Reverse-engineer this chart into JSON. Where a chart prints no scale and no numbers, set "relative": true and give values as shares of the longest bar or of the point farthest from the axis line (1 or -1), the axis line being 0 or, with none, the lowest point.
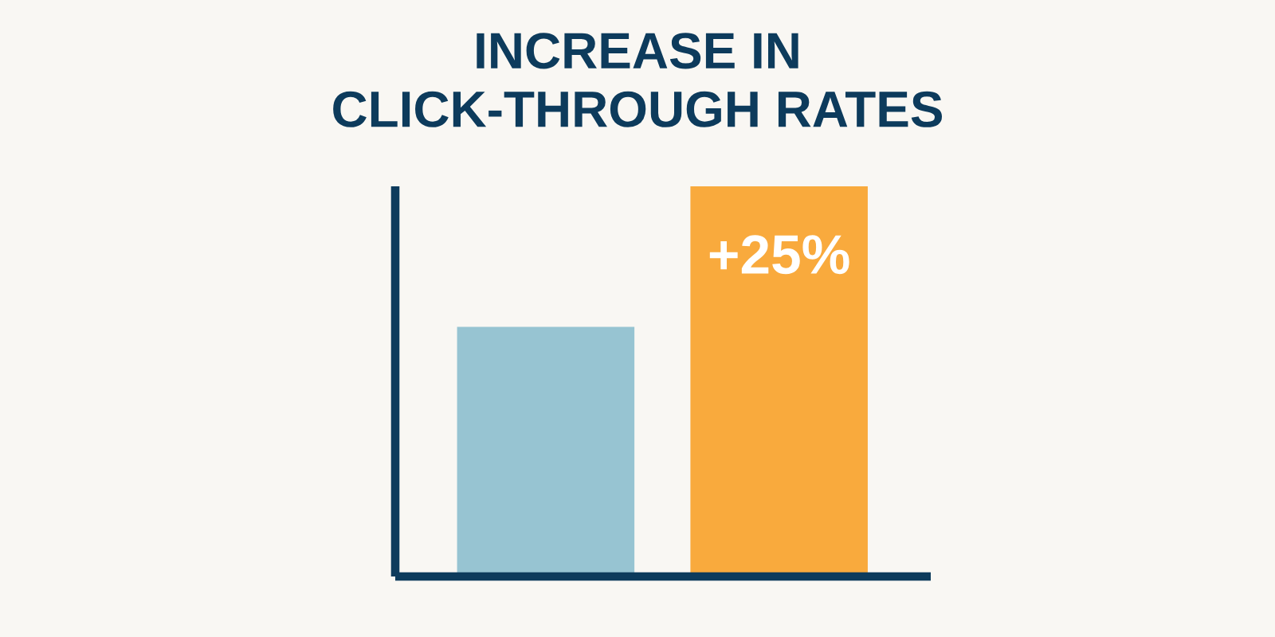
{
  "chart_data": {
    "type": "bar",
    "title": "INCREASE IN\nCLICK-THROUGH RATES",
    "categories": [
      null,
      null
    ],
    "values": [
      0.64,
      1
    ],
    "colors": [
      "#97c4d2",
      "#f9aa3d"
    ],
    "relative": true,
    "annotations": [
      "+25%"
    ],
    "grid": false,
    "legend": false
  }
}
